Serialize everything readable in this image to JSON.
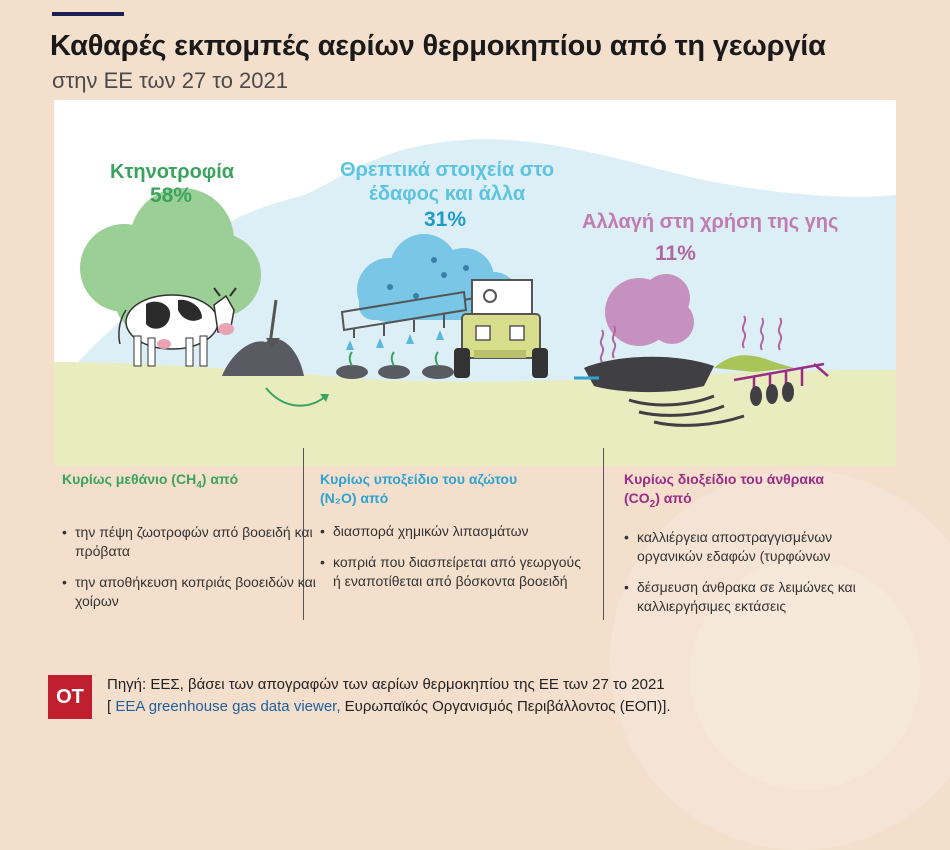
{
  "header": {
    "title": "Καθαρές εκπομπές αερίων θερμοκηπίου από τη γεωργία",
    "subtitle": "στην ΕΕ των 27 το 2021"
  },
  "categories": [
    {
      "label": "Κτηνοτροφία",
      "percent": "58%",
      "color": "#3aa35e"
    },
    {
      "label_line1": "Θρεπτικά στοιχεία στο",
      "label_line2": "έδαφος και άλλα",
      "percent": "31%",
      "color": "#5cc3e0",
      "percent_color": "#1d9ccc"
    },
    {
      "label": "Αλλαγή στη χρήση της γης",
      "percent": "11%",
      "color": "#c07cb0",
      "percent_color": "#b0679f"
    }
  ],
  "columns": [
    {
      "title_pre": "Κυρίως μεθάνιο (CH",
      "title_sub": "4",
      "title_post": ") από",
      "color": "#3aa35e",
      "bullets": [
        "την πέψη ζωοτροφών από βοοειδή και πρόβατα",
        "την αποθήκευση κοπριάς βοοειδών και χοίρων"
      ]
    },
    {
      "title_line1": "Κυρίως υποξείδιο του αζώτου",
      "title_line2": "(N₂O) από",
      "color": "#2ca3d1",
      "bullets": [
        "διασπορά χημικών λιπασμάτων",
        "κοπριά που διασπείρεται από γεωργούς ή εναποτίθεται από βόσκοντα βοοειδή"
      ]
    },
    {
      "title_line1": "Κυρίως διοξείδιο του άνθρακα",
      "title_pre2": "(CO",
      "title_sub": "2",
      "title_post2": ") από",
      "color": "#9b2d86",
      "bullets": [
        "καλλιέργεια αποστραγγισμένων οργανικών εδαφών (τυρφώνων",
        "δέσμευση άνθρακα σε λειμώνες και καλλιεργήσιμες εκτάσεις"
      ]
    }
  ],
  "footer": {
    "logo": "ΟΤ",
    "source_line1": "Πηγή: ΕΕΣ, βάσει των απογραφών των αερίων θερμοκηπίου της ΕΕ των 27 το 2021",
    "bracket_open": "[",
    "link_text": "EEA greenhouse gas data viewer,",
    "source_line2_rest": "Ευρωπαϊκός Οργανισμός Περιβάλλοντος (ΕΟΠ)].",
    "logo_color": "#bf1f2e"
  }
}
